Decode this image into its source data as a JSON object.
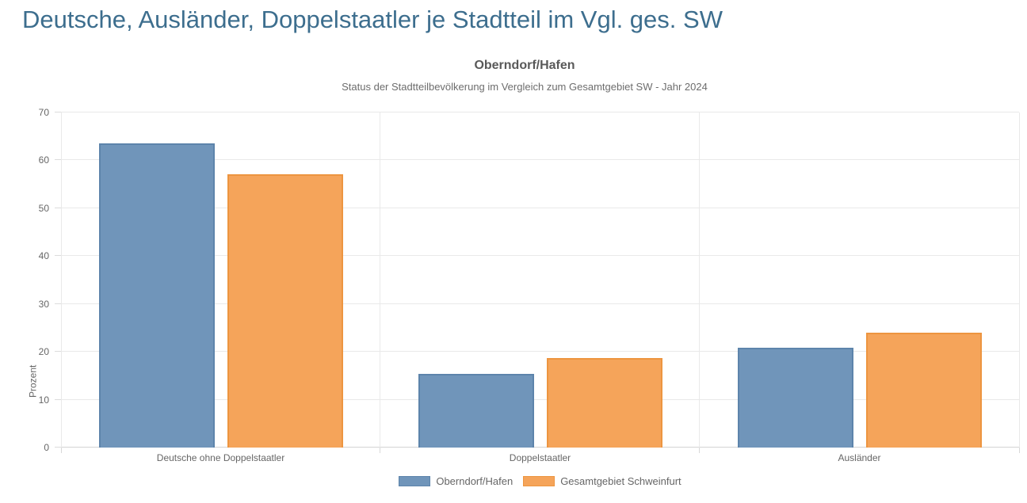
{
  "page": {
    "title": "Deutsche, Ausländer, Doppelstaatler je Stadtteil im Vgl. ges. SW"
  },
  "chart_data": {
    "type": "bar",
    "title": "Oberndorf/Hafen",
    "subtitle": "Status der Stadtteilbevölkerung im Vergleich zum Gesamtgebiet SW - Jahr 2024",
    "ylabel": "Prozent",
    "ylim": [
      0,
      70
    ],
    "ytick_step": 10,
    "grid": true,
    "legend_position": "bottom",
    "categories": [
      "Deutsche ohne Doppelstaatler",
      "Doppelstaatler",
      "Ausländer"
    ],
    "series": [
      {
        "name": "Oberndorf/Hafen",
        "color": "#7095ba",
        "border_color": "#5d84ab",
        "values": [
          63.6,
          15.4,
          20.8
        ]
      },
      {
        "name": "Gesamtgebiet Schweinfurt",
        "color": "#f5a45a",
        "border_color": "#ed9540",
        "values": [
          57.1,
          18.7,
          24.0
        ]
      }
    ]
  },
  "colors": {
    "page_title": "#3d6e8e",
    "chart_title": "#595959",
    "subtitle": "#6d6d6d",
    "tick_text": "#666666",
    "gridline": "#e9e9e9",
    "zero_line": "#d4d4d4",
    "background": "#ffffff"
  }
}
